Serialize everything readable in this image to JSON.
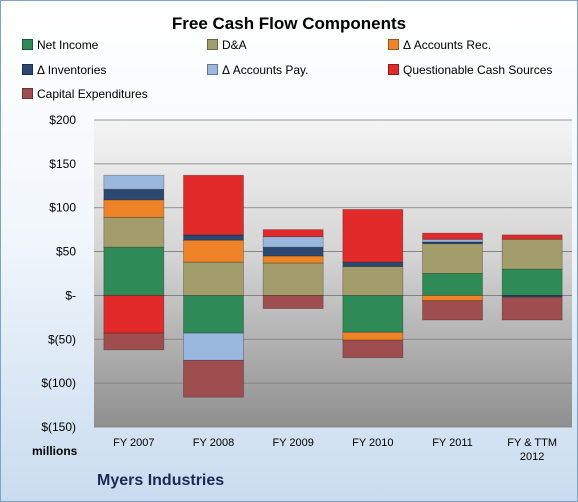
{
  "chart_data": {
    "type": "bar",
    "stacked": true,
    "title": "Free Cash Flow Components",
    "xlabel": "",
    "ylabel": "",
    "unit_label": "millions",
    "company": "Myers Industries",
    "categories": [
      [
        "FY 2007"
      ],
      [
        "FY 2008"
      ],
      [
        "FY 2009"
      ],
      [
        "FY 2010"
      ],
      [
        "FY 2011"
      ],
      [
        "FY & TTM",
        "2012"
      ]
    ],
    "ylim": [
      -150,
      200
    ],
    "yticks": [
      {
        "value": 200,
        "label": "$200"
      },
      {
        "value": 150,
        "label": "$150"
      },
      {
        "value": 100,
        "label": "$100"
      },
      {
        "value": 50,
        "label": "$50"
      },
      {
        "value": 0,
        "label": "$-"
      },
      {
        "value": -50,
        "label": "$(50)"
      },
      {
        "value": -100,
        "label": "$(100)"
      },
      {
        "value": -150,
        "label": "$(150)"
      }
    ],
    "grid": true,
    "legend_position": "top",
    "series": [
      {
        "name": "Net Income",
        "color": "#2e8b57",
        "values": [
          55,
          -43,
          0,
          -42,
          25,
          30
        ]
      },
      {
        "name": "D&A",
        "color": "#a39d6c",
        "values": [
          34,
          38,
          37,
          33,
          34,
          34
        ]
      },
      {
        "name": "Δ Accounts Rec.",
        "color": "#ee8427",
        "values": [
          20,
          25,
          8,
          -9,
          -6,
          0
        ]
      },
      {
        "name": "Δ Inventories",
        "color": "#2c4770",
        "values": [
          12,
          6,
          10,
          5,
          2,
          -2
        ]
      },
      {
        "name": "Δ Accounts Pay.",
        "color": "#9ab8dd",
        "values": [
          16,
          -31,
          12,
          0,
          3,
          0
        ]
      },
      {
        "name": "Questionable Cash Sources",
        "color": "#e22a2a",
        "values": [
          -43,
          68,
          8,
          60,
          7,
          5
        ]
      },
      {
        "name": "Capital Expenditures",
        "color": "#a04d4f",
        "values": [
          -19,
          -42,
          -15,
          -20,
          -22,
          -26
        ]
      }
    ]
  }
}
